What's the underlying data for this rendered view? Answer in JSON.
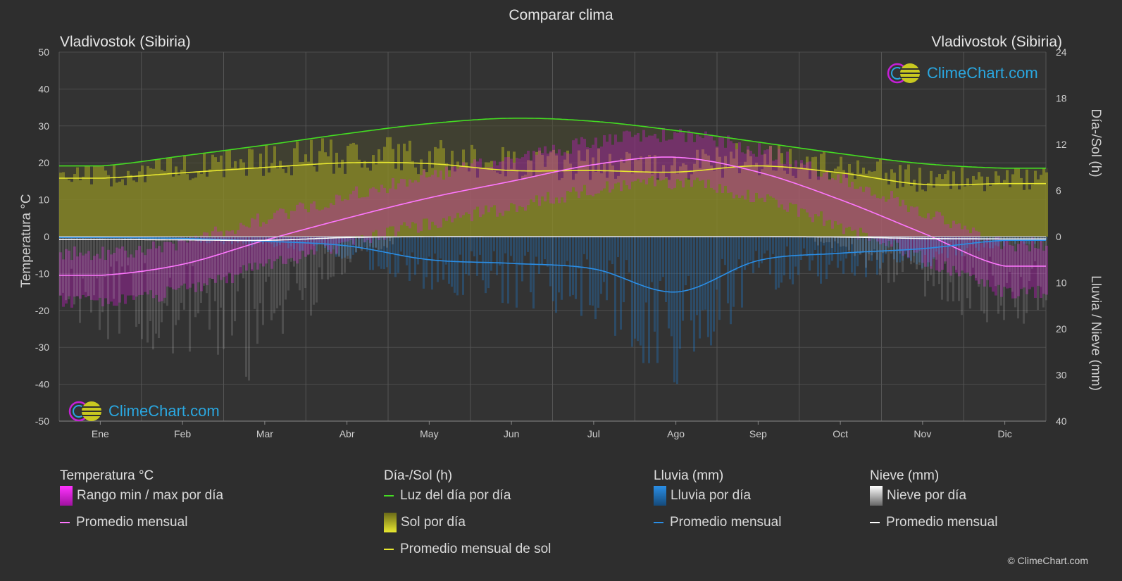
{
  "title": "Comparar clima",
  "city_left": "Vladivostok (Sibiria)",
  "city_right": "Vladivostok (Sibiria)",
  "logo_text": "ClimeChart.com",
  "copyright": "© ClimeChart.com",
  "legend": {
    "temp": {
      "heading": "Temperatura °C",
      "range": "Rango min / max por día",
      "avg": "Promedio mensual"
    },
    "sun": {
      "heading": "Día-/Sol (h)",
      "daylight": "Luz del día por día",
      "sun": "Sol por día",
      "avg": "Promedio mensual de sol"
    },
    "rain": {
      "heading": "Lluvia (mm)",
      "rain": "Lluvia por día",
      "avg": "Promedio mensual"
    },
    "snow": {
      "heading": "Nieve (mm)",
      "snow": "Nieve por día",
      "avg": "Promedio mensual"
    }
  },
  "colors": {
    "temp_range": "#d01ad0",
    "temp_avg": "#ff77ff",
    "daylight": "#44dd22",
    "sun_fill": "#a8a820",
    "sun_avg": "#e8e830",
    "rain": "#1f78c8",
    "rain_avg": "#2a8ee6",
    "snow": "#cfcfcf",
    "snow_avg": "#ffffff",
    "logo": "#2aa7e0"
  },
  "chart_data": {
    "type": "line",
    "categories": [
      "Ene",
      "Feb",
      "Mar",
      "Abr",
      "May",
      "Jun",
      "Jul",
      "Ago",
      "Sep",
      "Oct",
      "Nov",
      "Dic"
    ],
    "y_left": {
      "label": "Temperatura °C",
      "ylim": [
        -50,
        50
      ],
      "ticks": [
        50,
        40,
        30,
        20,
        10,
        0,
        -10,
        -20,
        -30,
        -40,
        -50
      ]
    },
    "y_right_top": {
      "label": "Día-/Sol (h)",
      "ylim": [
        0,
        24
      ],
      "ticks": [
        24,
        18,
        12,
        6,
        0
      ]
    },
    "y_right_bottom": {
      "label": "Lluvia / Nieve (mm)",
      "ylim": [
        0,
        40
      ],
      "ticks": [
        0,
        10,
        20,
        30,
        40
      ]
    },
    "grid": true,
    "series": [
      {
        "name": "Luz del día por día",
        "axis": "hours",
        "values": [
          9.2,
          10.5,
          11.9,
          13.4,
          14.7,
          15.4,
          15.0,
          13.8,
          12.3,
          10.8,
          9.5,
          8.9
        ]
      },
      {
        "name": "Promedio mensual de sol",
        "axis": "hours",
        "values": [
          7.6,
          8.3,
          9.0,
          9.6,
          9.5,
          8.6,
          8.6,
          8.4,
          9.2,
          8.3,
          6.8,
          6.9
        ]
      },
      {
        "name": "Promedio mensual",
        "group": "Temperatura °C",
        "axis": "temp",
        "values": [
          -10.5,
          -7.5,
          -1.0,
          5.0,
          10.5,
          15.0,
          19.5,
          21.5,
          17.5,
          10.0,
          1.0,
          -8.0
        ]
      },
      {
        "name": "Promedio mensual",
        "group": "Lluvia (mm)",
        "axis": "precip",
        "values": [
          0.2,
          0.4,
          1.0,
          2.0,
          5.0,
          5.8,
          7.0,
          12.0,
          5.2,
          3.6,
          2.6,
          0.8
        ]
      },
      {
        "name": "Promedio mensual",
        "group": "Nieve (mm)",
        "axis": "precip",
        "values": [
          0.6,
          0.7,
          0.8,
          0.2,
          0.0,
          0.0,
          0.0,
          0.0,
          0.0,
          0.1,
          0.4,
          0.5
        ]
      }
    ]
  }
}
